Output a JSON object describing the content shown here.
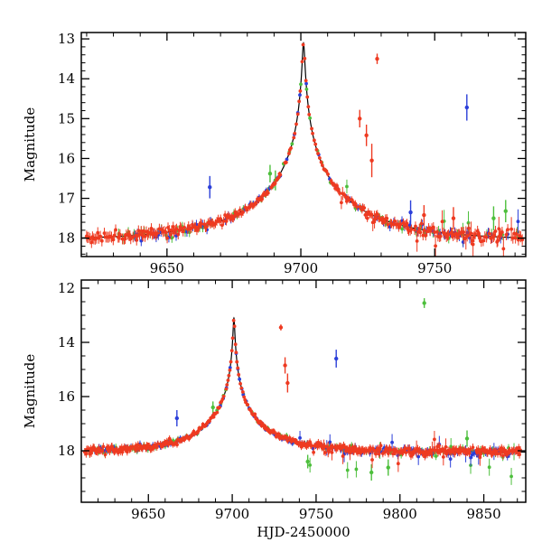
{
  "figure": {
    "xlabel": "HJD-2450000",
    "ylabel": "Magnitude",
    "background": "#ffffff"
  },
  "colors": {
    "red": "#ee3a21",
    "green": "#4dbf3c",
    "blue": "#2b3fd9",
    "model": "#000000",
    "axis": "#000000",
    "text": "#000000"
  },
  "model": {
    "type": "point_source_point_lens_microlensing",
    "t0": 9701.0,
    "tE": 40.0,
    "u0": 0.0105,
    "baseline_mag": 18.05,
    "peak_mag": 13.1
  },
  "chart_data": [
    {
      "type": "scatter",
      "panel": "top",
      "title": "",
      "xlabel": "",
      "ylabel": "Magnitude",
      "x_range": [
        9618,
        9784
      ],
      "y_top": 12.84,
      "y_bottom": 18.46,
      "x_major_ticks": [
        9650,
        9700,
        9750
      ],
      "x_minor_step": 10,
      "y_major_labels": [
        13,
        14,
        15,
        16,
        17,
        18
      ],
      "y_minor_step": 0.2,
      "grid": false,
      "legend": "none",
      "series": [
        {
          "name": "survey-green",
          "color_key": "green",
          "seed": 11,
          "t_start": 9632,
          "t_end": 9783,
          "cadence": 1.7,
          "gap_prob": 0.32,
          "extra": {
            "after": 9705,
            "prob": 0.15,
            "amp": 0.5,
            "bias": 0.1
          },
          "outliers": [
            [
              9688.5,
              16.38,
              0.22
            ],
            [
              9690.5,
              16.55,
              0.25
            ],
            [
              9772,
              17.5,
              0.3
            ],
            [
              9776.5,
              17.32,
              0.28
            ]
          ]
        },
        {
          "name": "survey-blue",
          "color_key": "blue",
          "seed": 22,
          "t_start": 9638,
          "t_end": 9783,
          "cadence": 1.25,
          "gap_prob": 0.3,
          "extra": {
            "after": 9712,
            "prob": 0.1,
            "amp": 0.4,
            "bias": 0.05
          },
          "outliers": [
            [
              9666,
              16.72,
              0.28
            ],
            [
              9762,
              14.72,
              0.33
            ],
            [
              9741,
              17.35,
              0.3
            ]
          ]
        },
        {
          "name": "survey-red",
          "color_key": "red",
          "seed": 33,
          "t_start": 9620,
          "t_end": 9783,
          "cadence": 0.45,
          "gap_prob": 0.12,
          "extra": {
            "after": 9715,
            "prob": 0.12,
            "amp": 0.35,
            "bias": 0.05
          },
          "outliers": [
            [
              9722,
              15.0,
              0.22
            ],
            [
              9724.5,
              15.42,
              0.27
            ],
            [
              9726.5,
              16.05,
              0.42
            ],
            [
              9728.5,
              13.5,
              0.13
            ],
            [
              9746,
              17.42,
              0.25
            ],
            [
              9757,
              17.5,
              0.28
            ]
          ]
        }
      ]
    },
    {
      "type": "scatter",
      "panel": "bottom",
      "title": "",
      "xlabel": "HJD-2450000",
      "ylabel": "Magnitude",
      "x_range": [
        9610,
        9875
      ],
      "y_top": 11.7,
      "y_bottom": 19.9,
      "x_major_ticks": [
        9650,
        9700,
        9750,
        9800,
        9850
      ],
      "x_minor_step": 10,
      "y_major_labels": [
        12,
        14,
        16,
        18
      ],
      "y_minor_step": 0.5,
      "grid": false,
      "legend": "none",
      "series": [
        {
          "name": "survey-green",
          "color_key": "green",
          "seed": 44,
          "t_start": 9615,
          "t_end": 9872,
          "cadence": 2.0,
          "gap_prob": 0.32,
          "extra": {
            "after": 9738,
            "prob": 0.2,
            "amp": 0.55,
            "bias": 0.25
          },
          "outliers": [
            [
              9814.5,
              12.55,
              0.18
            ],
            [
              9783,
              18.8,
              0.3
            ],
            [
              9793,
              18.62,
              0.3
            ],
            [
              9840,
              17.55,
              0.3
            ],
            [
              9745,
              18.4,
              0.25
            ],
            [
              9688.5,
              16.4,
              0.22
            ]
          ]
        },
        {
          "name": "survey-blue",
          "color_key": "blue",
          "seed": 55,
          "t_start": 9618,
          "t_end": 9872,
          "cadence": 1.35,
          "gap_prob": 0.3,
          "extra": {
            "after": 9740,
            "prob": 0.12,
            "amp": 0.4,
            "bias": 0.1
          },
          "outliers": [
            [
              9762,
              14.6,
              0.33
            ],
            [
              9667,
              16.8,
              0.3
            ]
          ]
        },
        {
          "name": "survey-red",
          "color_key": "red",
          "seed": 66,
          "t_start": 9612,
          "t_end": 9872,
          "cadence": 0.5,
          "gap_prob": 0.12,
          "extra": {
            "after": 9738,
            "prob": 0.08,
            "amp": 0.3,
            "bias": 0.05
          },
          "outliers": [
            [
              9729,
              13.45,
              0.11
            ],
            [
              9731.5,
              14.85,
              0.3
            ],
            [
              9733,
              15.5,
              0.35
            ]
          ]
        }
      ]
    }
  ]
}
